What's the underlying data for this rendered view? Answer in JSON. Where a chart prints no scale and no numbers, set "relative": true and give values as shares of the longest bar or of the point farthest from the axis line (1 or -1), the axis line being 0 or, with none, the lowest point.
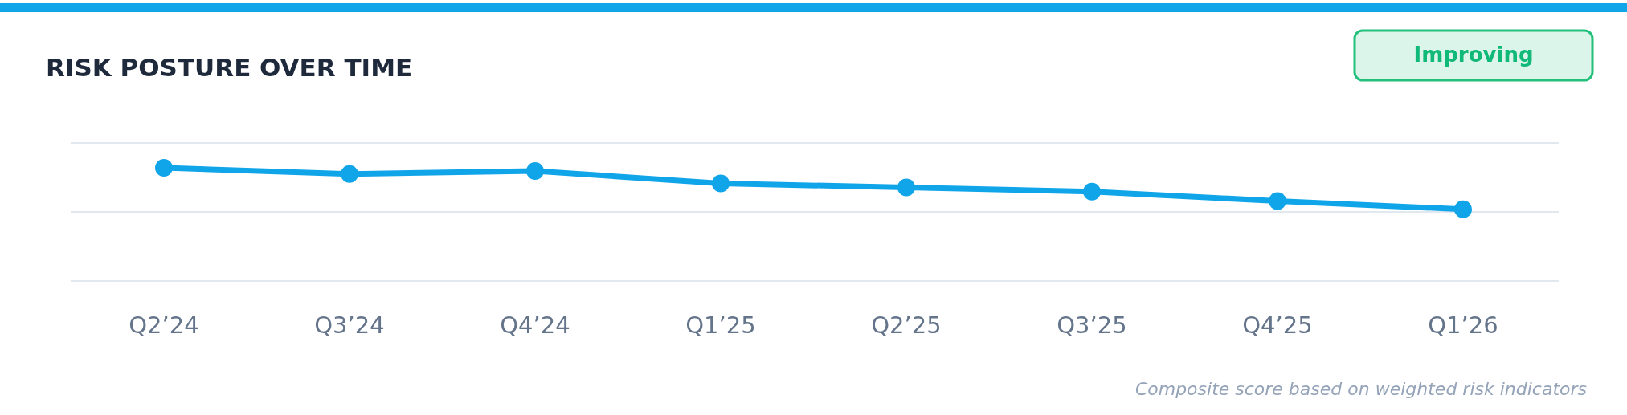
{
  "chart_data": {
    "type": "line",
    "title": "RISK POSTURE OVER TIME",
    "relative": true,
    "marker": "circle",
    "line_style": "solid",
    "ref_lines": [
      {
        "axis": "y",
        "value": 0.61,
        "color": "#e2e8f0"
      },
      {
        "axis": "y",
        "value": 1.22,
        "color": "#e2e8f0"
      }
    ],
    "categories": [
      "Q2’24",
      "Q3’24",
      "Q4’24",
      "Q1’25",
      "Q2’25",
      "Q3’25",
      "Q4’25",
      "Q1’26"
    ],
    "series": [
      {
        "color": "#10a5e9",
        "values": [
          1,
          0.945,
          0.972,
          0.862,
          0.826,
          0.789,
          0.706,
          0.633
        ]
      }
    ],
    "annotations": [
      "Improving",
      "Composite score based on weighted risk indicators"
    ]
  }
}
